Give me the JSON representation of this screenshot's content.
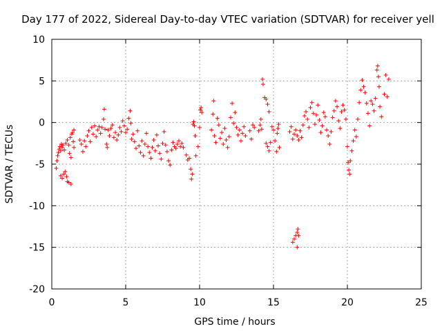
{
  "chart_data": {
    "type": "scatter",
    "title": "Day 177 of 2022, Sidereal Day-to-day VTEC variation (SDTVAR) for receiver yell",
    "xlabel": "GPS time / hours",
    "ylabel": "SDTVAR / TECUs",
    "xlim": [
      0,
      25
    ],
    "ylim": [
      -20,
      10
    ],
    "xticks": [
      "0",
      "5",
      "10",
      "15",
      "20",
      "25"
    ],
    "yticks": [
      "10",
      "5",
      "0",
      "-5",
      "-10",
      "-15",
      "-20"
    ],
    "grid": true,
    "marker": "+",
    "colors": {
      "series": "#ff0000",
      "grid": "#a0a0a0",
      "axis": "#000000"
    },
    "series": [
      {
        "name": "SDTVAR",
        "points": [
          [
            0.3,
            -5.5
          ],
          [
            0.35,
            -4.6
          ],
          [
            0.4,
            -4.0
          ],
          [
            0.45,
            -3.6
          ],
          [
            0.5,
            -3.2
          ],
          [
            0.55,
            -2.9
          ],
          [
            0.6,
            -3.4
          ],
          [
            0.65,
            -2.6
          ],
          [
            0.7,
            -3.0
          ],
          [
            0.75,
            -2.7
          ],
          [
            0.6,
            -6.4
          ],
          [
            0.7,
            -6.7
          ],
          [
            0.8,
            -6.2
          ],
          [
            0.9,
            -5.9
          ],
          [
            1.0,
            -6.5
          ],
          [
            1.05,
            -7.1
          ],
          [
            1.15,
            -7.2
          ],
          [
            1.3,
            -7.4
          ],
          [
            0.85,
            -3.3
          ],
          [
            0.95,
            -2.5
          ],
          [
            1.05,
            -2.1
          ],
          [
            1.15,
            -2.7
          ],
          [
            1.25,
            -1.8
          ],
          [
            1.35,
            -1.4
          ],
          [
            1.45,
            -2.3
          ],
          [
            1.5,
            -3.0
          ],
          [
            1.2,
            -3.7
          ],
          [
            1.3,
            -4.2
          ],
          [
            1.4,
            -1.2
          ],
          [
            1.5,
            -0.9
          ],
          [
            1.9,
            -2.1
          ],
          [
            2.0,
            -2.6
          ],
          [
            2.1,
            -3.5
          ],
          [
            2.2,
            -2.2
          ],
          [
            2.3,
            -2.9
          ],
          [
            2.4,
            -1.6
          ],
          [
            2.5,
            -1.0
          ],
          [
            2.6,
            -2.3
          ],
          [
            2.7,
            -0.6
          ],
          [
            2.8,
            -1.4
          ],
          [
            2.9,
            -0.4
          ],
          [
            3.0,
            -1.7
          ],
          [
            3.1,
            -0.9
          ],
          [
            3.2,
            -0.5
          ],
          [
            3.3,
            -1.3
          ],
          [
            3.4,
            -0.6
          ],
          [
            3.5,
            0.4
          ],
          [
            3.55,
            1.6
          ],
          [
            3.6,
            -0.8
          ],
          [
            3.7,
            -2.6
          ],
          [
            3.75,
            -3.0
          ],
          [
            3.8,
            -0.9
          ],
          [
            3.9,
            -1.6
          ],
          [
            4.0,
            -0.7
          ],
          [
            4.1,
            -0.3
          ],
          [
            4.2,
            -1.8
          ],
          [
            4.3,
            -1.2
          ],
          [
            4.4,
            -2.1
          ],
          [
            4.5,
            -1.5
          ],
          [
            4.6,
            -0.6
          ],
          [
            4.7,
            -1.1
          ],
          [
            4.8,
            0.2
          ],
          [
            4.9,
            -0.4
          ],
          [
            5.0,
            -1.2
          ],
          [
            5.1,
            -0.8
          ],
          [
            5.2,
            0.5
          ],
          [
            5.3,
            1.4
          ],
          [
            5.35,
            -0.1
          ],
          [
            5.4,
            -2.0
          ],
          [
            5.5,
            -1.4
          ],
          [
            5.6,
            -2.3
          ],
          [
            5.7,
            -3.1
          ],
          [
            5.8,
            -1.0
          ],
          [
            5.9,
            -2.8
          ],
          [
            6.0,
            -3.6
          ],
          [
            6.1,
            -2.2
          ],
          [
            6.2,
            -4.0
          ],
          [
            6.3,
            -2.6
          ],
          [
            6.4,
            -1.3
          ],
          [
            6.5,
            -2.9
          ],
          [
            6.6,
            -3.6
          ],
          [
            6.7,
            -4.3
          ],
          [
            6.8,
            -3.0
          ],
          [
            6.9,
            -2.1
          ],
          [
            7.0,
            -3.4
          ],
          [
            7.1,
            -1.5
          ],
          [
            7.2,
            -2.8
          ],
          [
            7.3,
            -3.7
          ],
          [
            7.4,
            -4.4
          ],
          [
            7.5,
            -2.5
          ],
          [
            7.6,
            -1.1
          ],
          [
            7.7,
            -2.7
          ],
          [
            7.8,
            -3.5
          ],
          [
            7.9,
            -4.6
          ],
          [
            8.0,
            -5.1
          ],
          [
            8.1,
            -3.3
          ],
          [
            8.2,
            -2.4
          ],
          [
            8.3,
            -2.9
          ],
          [
            8.4,
            -3.1
          ],
          [
            8.5,
            -2.6
          ],
          [
            8.6,
            -2.2
          ],
          [
            8.7,
            -2.9
          ],
          [
            8.8,
            -2.5
          ],
          [
            8.9,
            -3.0
          ],
          [
            9.1,
            -3.9
          ],
          [
            9.2,
            -4.5
          ],
          [
            9.3,
            -4.3
          ],
          [
            9.4,
            -5.6
          ],
          [
            9.45,
            -6.8
          ],
          [
            9.5,
            -6.2
          ],
          [
            9.55,
            -0.2
          ],
          [
            9.6,
            0.1
          ],
          [
            9.65,
            -0.4
          ],
          [
            9.7,
            -1.6
          ],
          [
            9.75,
            -4.0
          ],
          [
            9.9,
            -2.9
          ],
          [
            10.0,
            -0.6
          ],
          [
            10.05,
            1.5
          ],
          [
            10.1,
            1.8
          ],
          [
            10.15,
            1.2
          ],
          [
            10.8,
            -0.9
          ],
          [
            10.9,
            1.0
          ],
          [
            10.95,
            2.6
          ],
          [
            11.0,
            -1.6
          ],
          [
            11.1,
            -2.4
          ],
          [
            11.2,
            0.5
          ],
          [
            11.3,
            -0.3
          ],
          [
            11.4,
            -1.9
          ],
          [
            11.5,
            -1.2
          ],
          [
            11.6,
            -2.6
          ],
          [
            11.7,
            -0.7
          ],
          [
            11.8,
            -2.1
          ],
          [
            11.9,
            -3.0
          ],
          [
            12.0,
            -1.7
          ],
          [
            12.1,
            0.6
          ],
          [
            12.2,
            2.3
          ],
          [
            12.3,
            -0.1
          ],
          [
            12.4,
            1.2
          ],
          [
            12.5,
            -0.6
          ],
          [
            12.6,
            -1.5
          ],
          [
            12.7,
            -0.9
          ],
          [
            12.8,
            -2.2
          ],
          [
            12.9,
            -1.3
          ],
          [
            13.0,
            -0.5
          ],
          [
            13.1,
            -1.6
          ],
          [
            13.4,
            -1.0
          ],
          [
            13.5,
            -2.0
          ],
          [
            13.6,
            -0.3
          ],
          [
            13.7,
            -0.6
          ],
          [
            14.0,
            -1.0
          ],
          [
            14.1,
            -0.3
          ],
          [
            14.15,
            0.4
          ],
          [
            14.2,
            -0.8
          ],
          [
            14.25,
            5.2
          ],
          [
            14.3,
            4.6
          ],
          [
            14.4,
            3.0
          ],
          [
            14.5,
            2.8
          ],
          [
            14.6,
            2.2
          ],
          [
            14.7,
            1.3
          ],
          [
            14.5,
            -2.5
          ],
          [
            14.6,
            -2.9
          ],
          [
            14.7,
            -3.4
          ],
          [
            14.8,
            -2.4
          ],
          [
            14.9,
            -0.5
          ],
          [
            15.0,
            -0.9
          ],
          [
            15.1,
            -2.2
          ],
          [
            15.2,
            -3.5
          ],
          [
            15.25,
            -1.3
          ],
          [
            15.3,
            -0.7
          ],
          [
            15.35,
            -0.2
          ],
          [
            15.4,
            -3.0
          ],
          [
            16.1,
            -1.1
          ],
          [
            16.2,
            -0.5
          ],
          [
            16.3,
            -2.0
          ],
          [
            16.4,
            -1.4
          ],
          [
            16.5,
            -0.9
          ],
          [
            16.6,
            -1.6
          ],
          [
            16.7,
            -2.1
          ],
          [
            16.8,
            -1.0
          ],
          [
            16.3,
            -14.4
          ],
          [
            16.4,
            -14.0
          ],
          [
            16.5,
            -13.6
          ],
          [
            16.6,
            -13.2
          ],
          [
            16.65,
            -12.8
          ],
          [
            16.7,
            -13.6
          ],
          [
            16.6,
            -15.0
          ],
          [
            16.9,
            -1.8
          ],
          [
            17.0,
            -0.3
          ],
          [
            17.1,
            0.8
          ],
          [
            17.2,
            1.3
          ],
          [
            17.3,
            0.4
          ],
          [
            17.4,
            -0.6
          ],
          [
            17.5,
            1.8
          ],
          [
            17.6,
            2.4
          ],
          [
            17.7,
            1.1
          ],
          [
            17.8,
            -0.2
          ],
          [
            17.9,
            0.9
          ],
          [
            18.0,
            2.1
          ],
          [
            18.1,
            0.3
          ],
          [
            18.2,
            -1.2
          ],
          [
            18.3,
            -0.4
          ],
          [
            18.4,
            1.2
          ],
          [
            18.5,
            0.7
          ],
          [
            18.6,
            -0.9
          ],
          [
            18.7,
            -1.6
          ],
          [
            18.8,
            -2.6
          ],
          [
            18.9,
            -1.1
          ],
          [
            19.0,
            0.6
          ],
          [
            19.1,
            1.4
          ],
          [
            19.2,
            2.6
          ],
          [
            19.3,
            1.9
          ],
          [
            19.4,
            0.2
          ],
          [
            19.5,
            -0.7
          ],
          [
            19.6,
            1.3
          ],
          [
            19.7,
            2.1
          ],
          [
            19.8,
            1.5
          ],
          [
            19.9,
            0.4
          ],
          [
            20.0,
            -2.9
          ],
          [
            20.05,
            -4.8
          ],
          [
            20.1,
            -5.7
          ],
          [
            20.15,
            -6.2
          ],
          [
            20.2,
            -4.6
          ],
          [
            20.3,
            -3.4
          ],
          [
            20.4,
            -2.2
          ],
          [
            20.5,
            -0.9
          ],
          [
            20.6,
            -1.7
          ],
          [
            20.7,
            0.4
          ],
          [
            20.8,
            2.4
          ],
          [
            20.9,
            3.9
          ],
          [
            21.0,
            5.1
          ],
          [
            21.1,
            4.3
          ],
          [
            21.2,
            3.6
          ],
          [
            21.3,
            2.3
          ],
          [
            21.4,
            1.1
          ],
          [
            21.5,
            -0.4
          ],
          [
            21.6,
            2.6
          ],
          [
            21.7,
            2.2
          ],
          [
            21.8,
            1.4
          ],
          [
            21.9,
            2.9
          ],
          [
            22.0,
            6.3
          ],
          [
            22.05,
            6.8
          ],
          [
            22.1,
            5.5
          ],
          [
            22.15,
            4.3
          ],
          [
            22.2,
            1.9
          ],
          [
            22.3,
            0.7
          ],
          [
            22.5,
            3.4
          ],
          [
            22.6,
            5.7
          ],
          [
            22.7,
            3.1
          ],
          [
            22.8,
            5.2
          ]
        ]
      }
    ]
  }
}
